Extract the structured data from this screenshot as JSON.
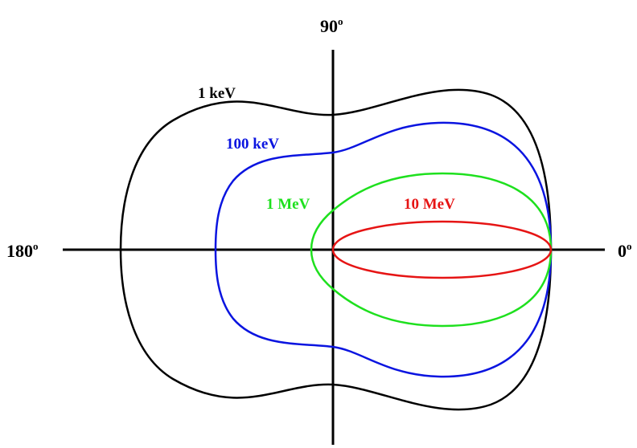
{
  "axes": {
    "angle_0": "0",
    "angle_90": "90",
    "angle_180": "180",
    "degree_mark": "o",
    "line_color": "#000000"
  },
  "curves": [
    {
      "label": "1 keV",
      "color": "#000000"
    },
    {
      "label": "100 keV",
      "color": "#0a14e0"
    },
    {
      "label": "1 MeV",
      "color": "#1ee01e"
    },
    {
      "label": "10 MeV",
      "color": "#e61414"
    }
  ]
}
